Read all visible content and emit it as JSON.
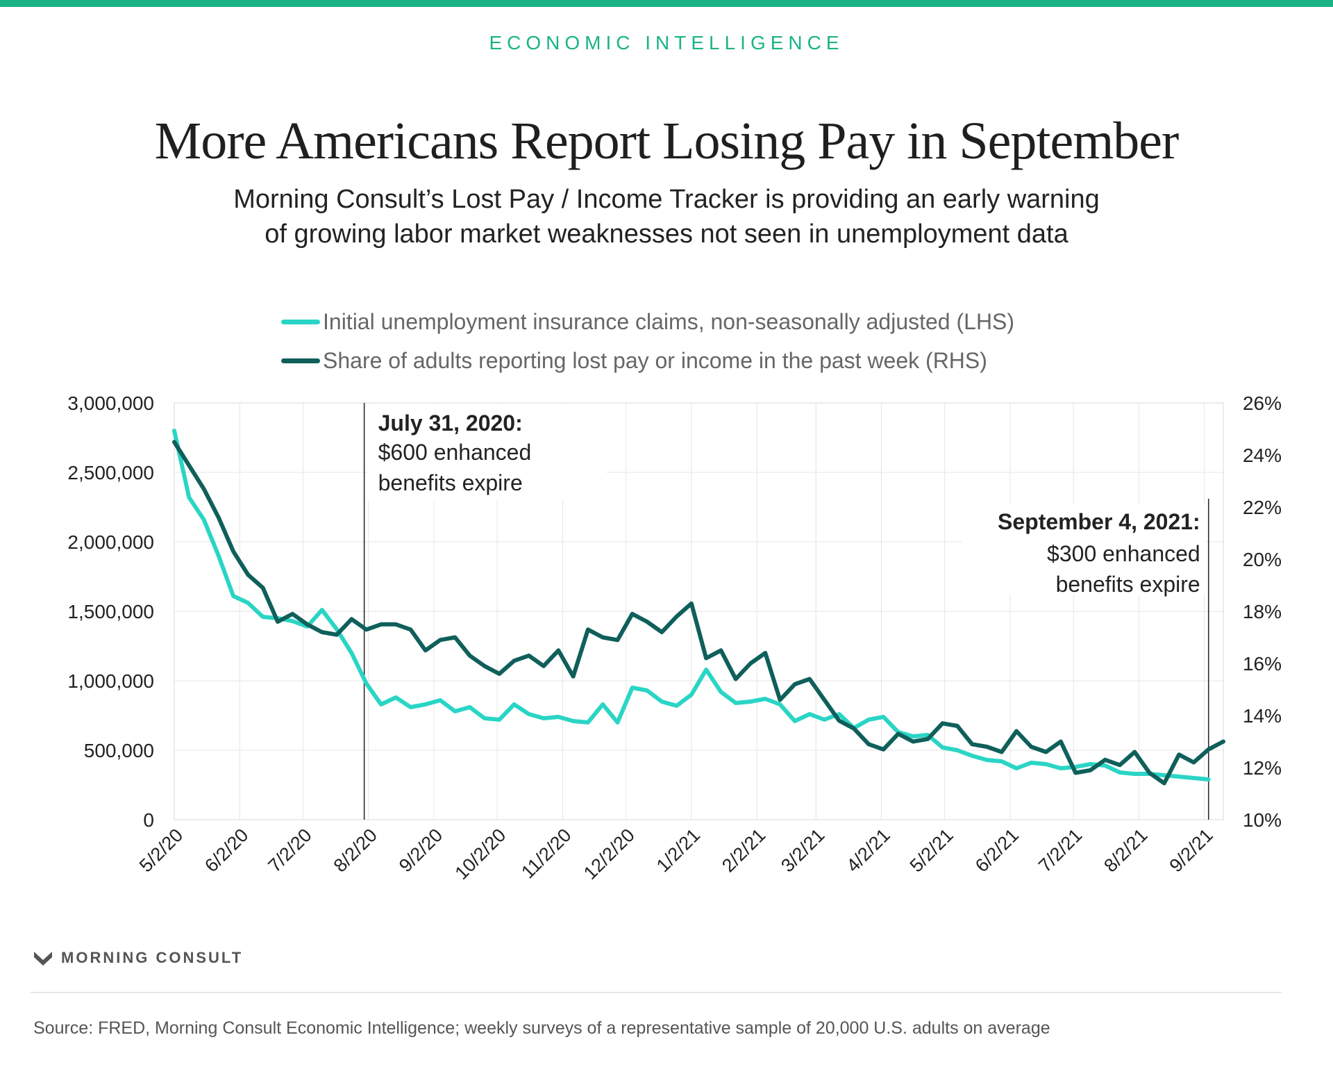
{
  "colors": {
    "accent": "#1bb386",
    "claims_line": "#2ad5c5",
    "lostpay_line": "#0f5f5a",
    "grid": "#e6e6e6",
    "text": "#222222"
  },
  "header": {
    "kicker": "ECONOMIC INTELLIGENCE",
    "title": "More Americans Report Losing Pay in September",
    "subtitle_line1": "Morning Consult’s Lost Pay / Income Tracker is providing an early warning",
    "subtitle_line2": "of growing labor market weaknesses not seen in unemployment data"
  },
  "footer": {
    "logo_text": "MORNING CONSULT",
    "source": "Source: FRED, Morning Consult Economic Intelligence; weekly surveys of a representative sample of 20,000 U.S. adults on average"
  },
  "chart_data": {
    "type": "line",
    "title": "More Americans Report Losing Pay in September",
    "legend_position": "top",
    "grid": true,
    "x_axis": {
      "ticks": [
        "5/2/20",
        "6/2/20",
        "7/2/20",
        "8/2/20",
        "9/2/20",
        "10/2/20",
        "11/2/20",
        "12/2/20",
        "1/2/21",
        "2/2/21",
        "3/2/21",
        "4/2/21",
        "5/2/21",
        "6/2/21",
        "7/2/21",
        "8/2/21",
        "9/2/21"
      ],
      "range": [
        "2020-05-02",
        "2021-09-11"
      ]
    },
    "y_left": {
      "ticks": [
        "0",
        "500,000",
        "1,000,000",
        "1,500,000",
        "2,000,000",
        "2,500,000",
        "3,000,000"
      ],
      "range": [
        0,
        3000000
      ]
    },
    "y_right": {
      "ticks": [
        "10%",
        "12%",
        "14%",
        "16%",
        "18%",
        "20%",
        "22%",
        "24%",
        "26%"
      ],
      "range": [
        10,
        26
      ]
    },
    "series": [
      {
        "name": "Initial unemployment insurance claims, non-seasonally adjusted (LHS)",
        "axis": "left",
        "points": [
          [
            "2020-05-02",
            2800000
          ],
          [
            "2020-05-09",
            2320000
          ],
          [
            "2020-05-16",
            2160000
          ],
          [
            "2020-05-23",
            1900000
          ],
          [
            "2020-05-30",
            1610000
          ],
          [
            "2020-06-06",
            1560000
          ],
          [
            "2020-06-13",
            1460000
          ],
          [
            "2020-06-20",
            1450000
          ],
          [
            "2020-06-27",
            1430000
          ],
          [
            "2020-07-04",
            1390000
          ],
          [
            "2020-07-11",
            1510000
          ],
          [
            "2020-07-18",
            1370000
          ],
          [
            "2020-07-25",
            1200000
          ],
          [
            "2020-08-01",
            980000
          ],
          [
            "2020-08-08",
            830000
          ],
          [
            "2020-08-15",
            880000
          ],
          [
            "2020-08-22",
            810000
          ],
          [
            "2020-08-29",
            830000
          ],
          [
            "2020-09-05",
            860000
          ],
          [
            "2020-09-12",
            780000
          ],
          [
            "2020-09-19",
            810000
          ],
          [
            "2020-09-26",
            730000
          ],
          [
            "2020-10-03",
            720000
          ],
          [
            "2020-10-10",
            830000
          ],
          [
            "2020-10-17",
            760000
          ],
          [
            "2020-10-24",
            730000
          ],
          [
            "2020-10-31",
            740000
          ],
          [
            "2020-11-07",
            710000
          ],
          [
            "2020-11-14",
            700000
          ],
          [
            "2020-11-21",
            830000
          ],
          [
            "2020-11-28",
            700000
          ],
          [
            "2020-12-05",
            950000
          ],
          [
            "2020-12-12",
            930000
          ],
          [
            "2020-12-19",
            850000
          ],
          [
            "2020-12-26",
            820000
          ],
          [
            "2021-01-02",
            900000
          ],
          [
            "2021-01-09",
            1080000
          ],
          [
            "2021-01-16",
            920000
          ],
          [
            "2021-01-23",
            840000
          ],
          [
            "2021-01-30",
            850000
          ],
          [
            "2021-02-06",
            870000
          ],
          [
            "2021-02-13",
            830000
          ],
          [
            "2021-02-20",
            710000
          ],
          [
            "2021-02-27",
            760000
          ],
          [
            "2021-03-06",
            720000
          ],
          [
            "2021-03-13",
            760000
          ],
          [
            "2021-03-20",
            660000
          ],
          [
            "2021-03-27",
            720000
          ],
          [
            "2021-04-03",
            740000
          ],
          [
            "2021-04-10",
            630000
          ],
          [
            "2021-04-17",
            600000
          ],
          [
            "2021-04-24",
            610000
          ],
          [
            "2021-05-01",
            520000
          ],
          [
            "2021-05-08",
            500000
          ],
          [
            "2021-05-15",
            460000
          ],
          [
            "2021-05-22",
            430000
          ],
          [
            "2021-05-29",
            420000
          ],
          [
            "2021-06-05",
            370000
          ],
          [
            "2021-06-12",
            410000
          ],
          [
            "2021-06-19",
            400000
          ],
          [
            "2021-06-26",
            370000
          ],
          [
            "2021-07-03",
            380000
          ],
          [
            "2021-07-10",
            400000
          ],
          [
            "2021-07-17",
            390000
          ],
          [
            "2021-07-24",
            340000
          ],
          [
            "2021-07-31",
            330000
          ],
          [
            "2021-08-07",
            330000
          ],
          [
            "2021-08-14",
            320000
          ],
          [
            "2021-08-21",
            310000
          ],
          [
            "2021-08-28",
            300000
          ],
          [
            "2021-09-04",
            290000
          ]
        ]
      },
      {
        "name": "Share of adults reporting lost pay or income in the past week (RHS)",
        "axis": "right",
        "points": [
          [
            "2020-05-02",
            24.5
          ],
          [
            "2020-05-09",
            23.6
          ],
          [
            "2020-05-16",
            22.7
          ],
          [
            "2020-05-23",
            21.6
          ],
          [
            "2020-05-30",
            20.3
          ],
          [
            "2020-06-06",
            19.4
          ],
          [
            "2020-06-13",
            18.9
          ],
          [
            "2020-06-20",
            17.6
          ],
          [
            "2020-06-27",
            17.9
          ],
          [
            "2020-07-04",
            17.5
          ],
          [
            "2020-07-11",
            17.2
          ],
          [
            "2020-07-18",
            17.1
          ],
          [
            "2020-07-25",
            17.7
          ],
          [
            "2020-08-01",
            17.3
          ],
          [
            "2020-08-08",
            17.5
          ],
          [
            "2020-08-15",
            17.5
          ],
          [
            "2020-08-22",
            17.3
          ],
          [
            "2020-08-29",
            16.5
          ],
          [
            "2020-09-05",
            16.9
          ],
          [
            "2020-09-12",
            17.0
          ],
          [
            "2020-09-19",
            16.3
          ],
          [
            "2020-09-26",
            15.9
          ],
          [
            "2020-10-03",
            15.6
          ],
          [
            "2020-10-10",
            16.1
          ],
          [
            "2020-10-17",
            16.3
          ],
          [
            "2020-10-24",
            15.9
          ],
          [
            "2020-10-31",
            16.5
          ],
          [
            "2020-11-07",
            15.5
          ],
          [
            "2020-11-14",
            17.3
          ],
          [
            "2020-11-21",
            17.0
          ],
          [
            "2020-11-28",
            16.9
          ],
          [
            "2020-12-05",
            17.9
          ],
          [
            "2020-12-12",
            17.6
          ],
          [
            "2020-12-19",
            17.2
          ],
          [
            "2020-12-26",
            17.8
          ],
          [
            "2021-01-02",
            18.3
          ],
          [
            "2021-01-09",
            16.2
          ],
          [
            "2021-01-16",
            16.5
          ],
          [
            "2021-01-23",
            15.4
          ],
          [
            "2021-01-30",
            16.0
          ],
          [
            "2021-02-06",
            16.4
          ],
          [
            "2021-02-13",
            14.6
          ],
          [
            "2021-02-20",
            15.2
          ],
          [
            "2021-02-27",
            15.4
          ],
          [
            "2021-03-06",
            14.6
          ],
          [
            "2021-03-13",
            13.8
          ],
          [
            "2021-03-20",
            13.5
          ],
          [
            "2021-03-27",
            12.9
          ],
          [
            "2021-04-03",
            12.7
          ],
          [
            "2021-04-10",
            13.3
          ],
          [
            "2021-04-17",
            13.0
          ],
          [
            "2021-04-24",
            13.1
          ],
          [
            "2021-05-01",
            13.7
          ],
          [
            "2021-05-08",
            13.6
          ],
          [
            "2021-05-15",
            12.9
          ],
          [
            "2021-05-22",
            12.8
          ],
          [
            "2021-05-29",
            12.6
          ],
          [
            "2021-06-05",
            13.4
          ],
          [
            "2021-06-12",
            12.8
          ],
          [
            "2021-06-19",
            12.6
          ],
          [
            "2021-06-26",
            13.0
          ],
          [
            "2021-07-03",
            11.8
          ],
          [
            "2021-07-10",
            11.9
          ],
          [
            "2021-07-17",
            12.3
          ],
          [
            "2021-07-24",
            12.1
          ],
          [
            "2021-07-31",
            12.6
          ],
          [
            "2021-08-07",
            11.8
          ],
          [
            "2021-08-14",
            11.4
          ],
          [
            "2021-08-21",
            12.5
          ],
          [
            "2021-08-28",
            12.2
          ],
          [
            "2021-09-04",
            12.7
          ],
          [
            "2021-09-11",
            13.0
          ]
        ]
      }
    ],
    "annotations": [
      {
        "date": "2020-07-31",
        "heading": "July 31, 2020:",
        "line1": "$600 enhanced",
        "line2": "benefits expire",
        "align": "left"
      },
      {
        "date": "2021-09-04",
        "heading": "September 4, 2021:",
        "line1": "$300 enhanced",
        "line2": "benefits expire",
        "align": "right"
      }
    ]
  }
}
